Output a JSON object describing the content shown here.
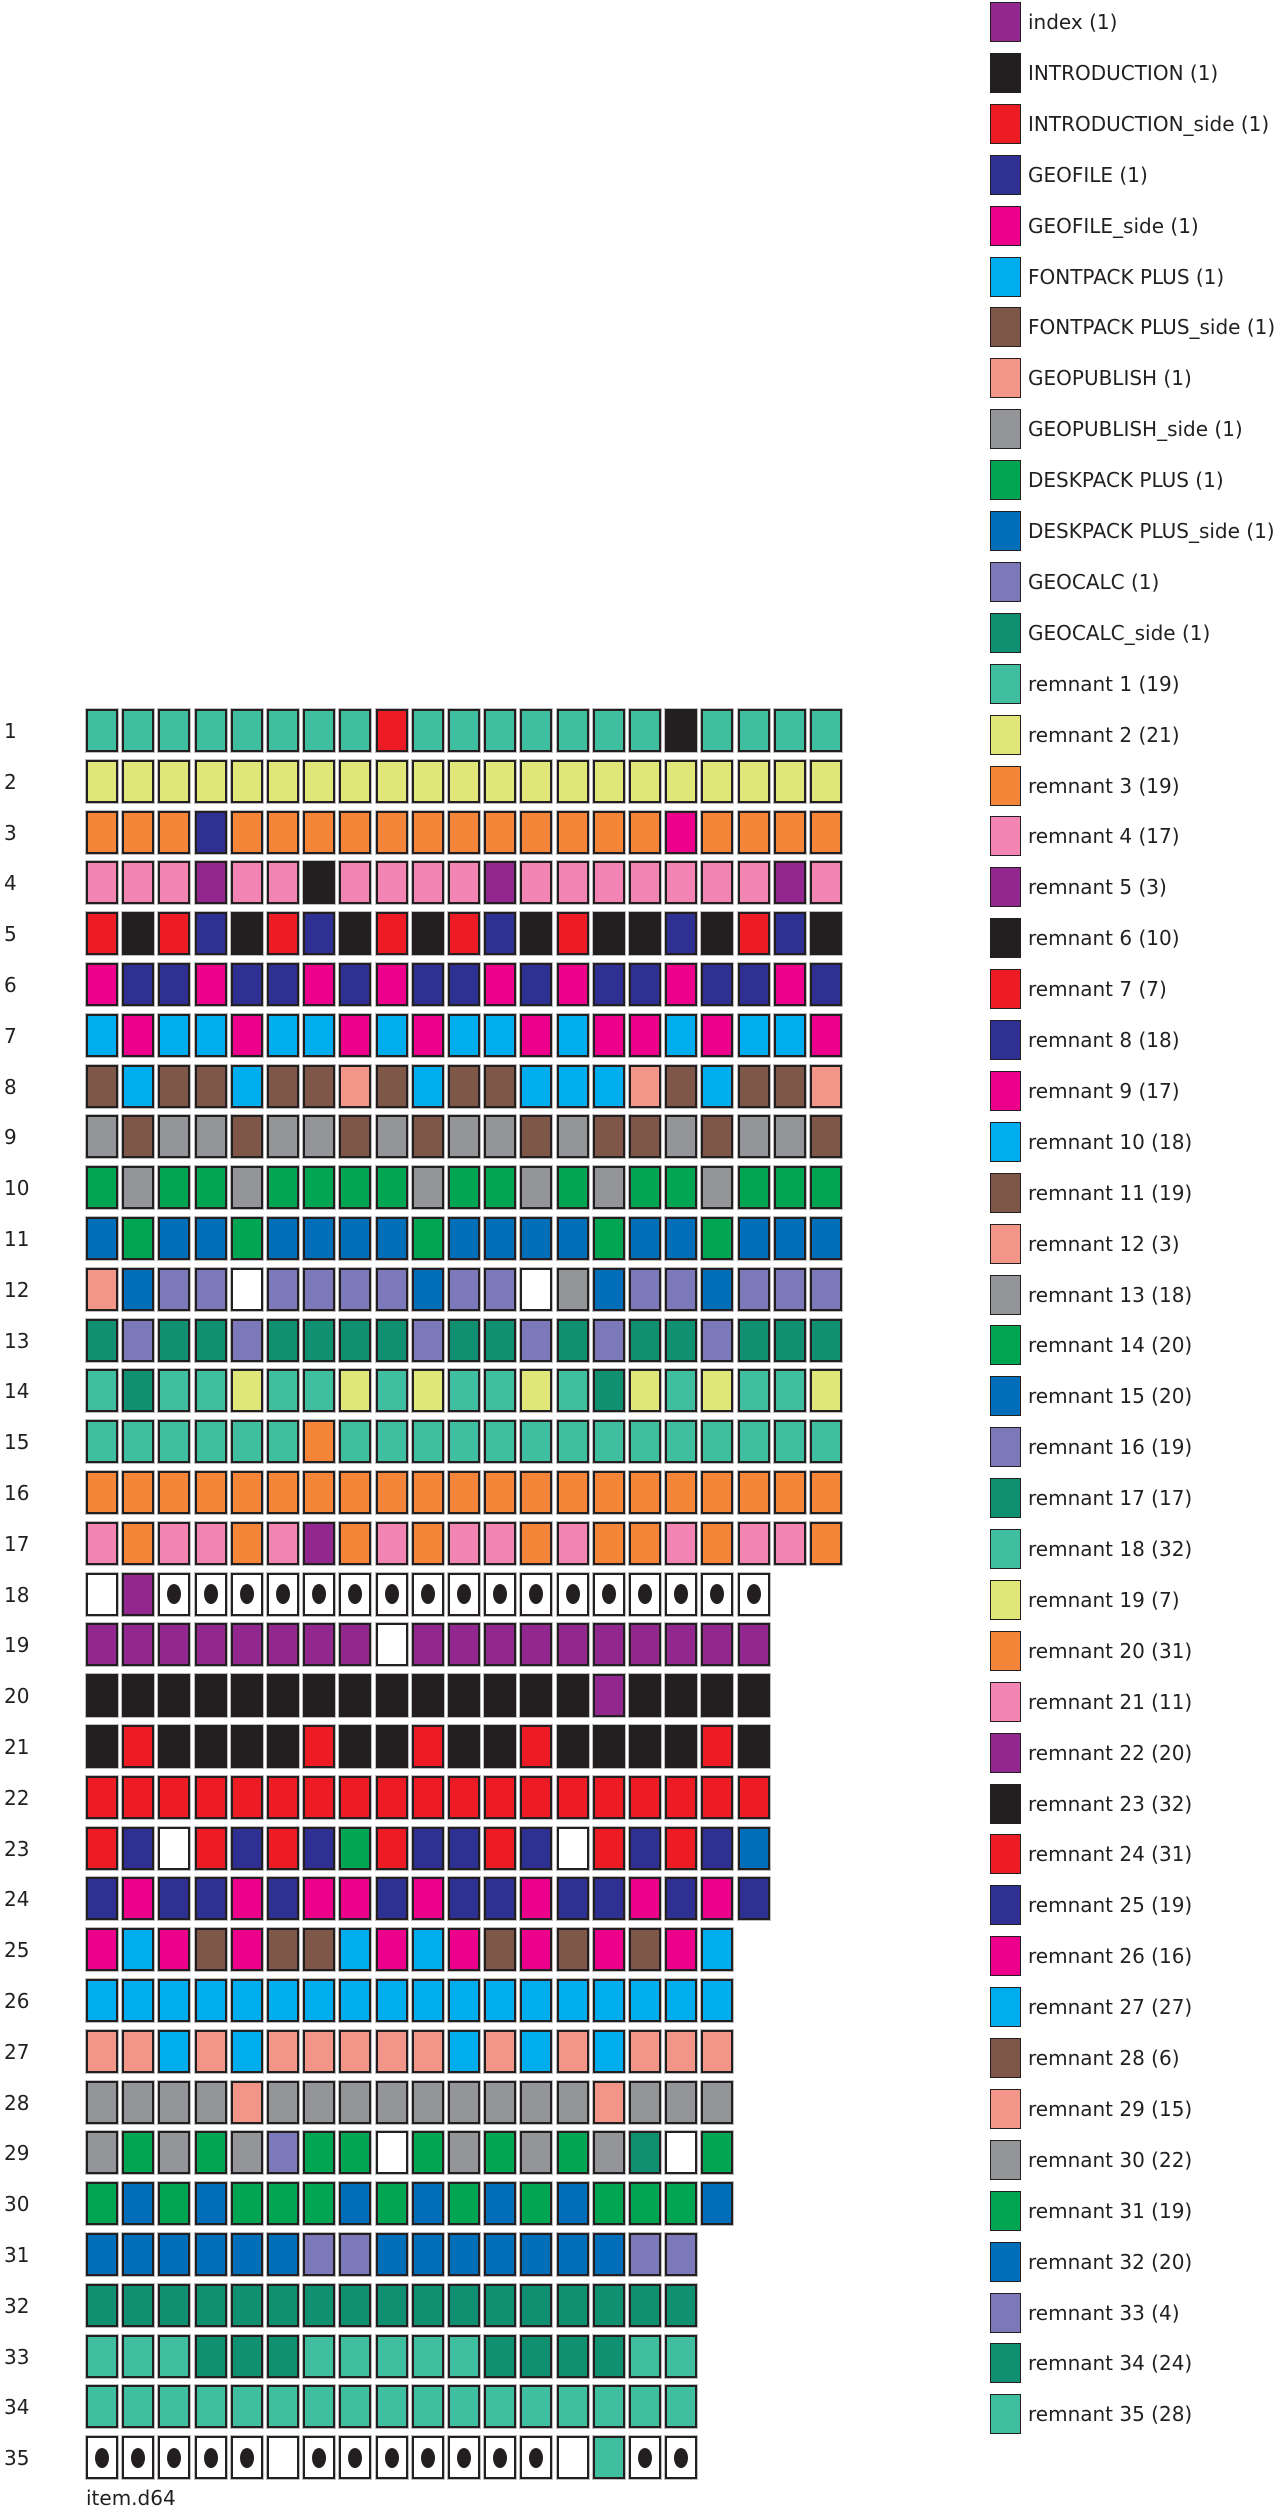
{
  "palette": {
    "T": "#3fbf9f",
    "Y": "#e0e678",
    "O": "#f58538",
    "P": "#f285b4",
    "U": "#92278f",
    "K": "#231f20",
    "R": "#ed1c24",
    "N": "#2e3192",
    "M": "#ec008c",
    "C": "#00aeef",
    "B": "#7f5749",
    "S": "#f4958a",
    "G": "#939598",
    "E": "#00a651",
    "L": "#006eb9",
    "V": "#7b79b9",
    "D": "#0f9070",
    "W": "#ffffff",
    "o": "#ffffff"
  },
  "legend": [
    {
      "label": "index (1)",
      "color": "U"
    },
    {
      "label": "INTRODUCTION (1)",
      "color": "K"
    },
    {
      "label": "INTRODUCTION_side (1)",
      "color": "R"
    },
    {
      "label": "GEOFILE (1)",
      "color": "N"
    },
    {
      "label": "GEOFILE_side (1)",
      "color": "M"
    },
    {
      "label": "FONTPACK PLUS (1)",
      "color": "C"
    },
    {
      "label": "FONTPACK PLUS_side (1)",
      "color": "B"
    },
    {
      "label": "GEOPUBLISH (1)",
      "color": "S"
    },
    {
      "label": "GEOPUBLISH_side (1)",
      "color": "G"
    },
    {
      "label": "DESKPACK PLUS (1)",
      "color": "E"
    },
    {
      "label": "DESKPACK PLUS_side (1)",
      "color": "L"
    },
    {
      "label": "GEOCALC (1)",
      "color": "V"
    },
    {
      "label": "GEOCALC_side (1)",
      "color": "D"
    },
    {
      "label": "remnant 1 (19)",
      "color": "T"
    },
    {
      "label": "remnant 2 (21)",
      "color": "Y"
    },
    {
      "label": "remnant 3 (19)",
      "color": "O"
    },
    {
      "label": "remnant 4 (17)",
      "color": "P"
    },
    {
      "label": "remnant 5 (3)",
      "color": "U"
    },
    {
      "label": "remnant 6 (10)",
      "color": "K"
    },
    {
      "label": "remnant 7 (7)",
      "color": "R"
    },
    {
      "label": "remnant 8 (18)",
      "color": "N"
    },
    {
      "label": "remnant 9 (17)",
      "color": "M"
    },
    {
      "label": "remnant 10 (18)",
      "color": "C"
    },
    {
      "label": "remnant 11 (19)",
      "color": "B"
    },
    {
      "label": "remnant 12 (3)",
      "color": "S"
    },
    {
      "label": "remnant 13 (18)",
      "color": "G"
    },
    {
      "label": "remnant 14 (20)",
      "color": "E"
    },
    {
      "label": "remnant 15 (20)",
      "color": "L"
    },
    {
      "label": "remnant 16 (19)",
      "color": "V"
    },
    {
      "label": "remnant 17 (17)",
      "color": "D"
    },
    {
      "label": "remnant 18 (32)",
      "color": "T"
    },
    {
      "label": "remnant 19 (7)",
      "color": "Y"
    },
    {
      "label": "remnant 20 (31)",
      "color": "O"
    },
    {
      "label": "remnant 21 (11)",
      "color": "P"
    },
    {
      "label": "remnant 22 (20)",
      "color": "U"
    },
    {
      "label": "remnant 23 (32)",
      "color": "K"
    },
    {
      "label": "remnant 24 (31)",
      "color": "R"
    },
    {
      "label": "remnant 25 (19)",
      "color": "N"
    },
    {
      "label": "remnant 26 (16)",
      "color": "M"
    },
    {
      "label": "remnant 27 (27)",
      "color": "C"
    },
    {
      "label": "remnant 28 (6)",
      "color": "B"
    },
    {
      "label": "remnant 29 (15)",
      "color": "S"
    },
    {
      "label": "remnant 30 (22)",
      "color": "G"
    },
    {
      "label": "remnant 31 (19)",
      "color": "E"
    },
    {
      "label": "remnant 32 (20)",
      "color": "L"
    },
    {
      "label": "remnant 33 (4)",
      "color": "V"
    },
    {
      "label": "remnant 34 (24)",
      "color": "D"
    },
    {
      "label": "remnant 35 (28)",
      "color": "T"
    }
  ],
  "rows": [
    {
      "label": "1",
      "cells": "TTTTTTTTRTTTTTTTKTTTT"
    },
    {
      "label": "2",
      "cells": "YYYYYYYYYYYYYYYYYYYYY"
    },
    {
      "label": "3",
      "cells": "OOONOOOOOOOOOOOOMOOOO"
    },
    {
      "label": "4",
      "cells": "PPPUPPKPPPPUPPPPPPPUP"
    },
    {
      "label": "5",
      "cells": "RKRNKRNKRKRNKRKKNKRNK"
    },
    {
      "label": "6",
      "cells": "MNNMNNMNMNNMNMNNMNNMN"
    },
    {
      "label": "7",
      "cells": "CMCCMCCMCMCCMCMMCMCCM"
    },
    {
      "label": "8",
      "cells": "BCBBCBBSBCBBCCCSBCBBS"
    },
    {
      "label": "9",
      "cells": "GBGGBGGBGBGGBGBBGBGGB"
    },
    {
      "label": "10",
      "cells": "EGEEGEEEEGEEGEGEEGEEE"
    },
    {
      "label": "11",
      "cells": "LELLELLLLELLLLELLELLL"
    },
    {
      "label": "12",
      "cells": "SLVVWVVVVLVVWGLVVLVVV"
    },
    {
      "label": "13",
      "cells": "DVDDVDDDDVDDVDVDDVDDD"
    },
    {
      "label": "14",
      "cells": "TDTTYTTYTYTTYTDYTYTTY"
    },
    {
      "label": "15",
      "cells": "TTTTTTOTTTTTTTTTTTTTT"
    },
    {
      "label": "16",
      "cells": "OOOOOOOOOOOOOOOOOOOOO"
    },
    {
      "label": "17",
      "cells": "POPPOPUOPOPPOPOOPOPPO"
    },
    {
      "label": "18",
      "cells": "WUooooooooooooooooo"
    },
    {
      "label": "19",
      "cells": "UUUUUUUUWUUUUUUUUUU"
    },
    {
      "label": "20",
      "cells": "KKKKKKKKKKKKKKUKKKK"
    },
    {
      "label": "21",
      "cells": "KRKKKKRKKRKKRKKKKRK"
    },
    {
      "label": "22",
      "cells": "RRRRRRRRRRRRRRRRRRR"
    },
    {
      "label": "23",
      "cells": "RNWRNRNERNNRNWRNRNL"
    },
    {
      "label": "24",
      "cells": "NMNNMNMMNMNNMNNMNMN"
    },
    {
      "label": "25",
      "cells": "MCMBMBBCMCMBMBMBMC"
    },
    {
      "label": "26",
      "cells": "CCCCCCCCCCCCCCCCCC"
    },
    {
      "label": "27",
      "cells": "SSCSCSSSSSCSCSCSSS"
    },
    {
      "label": "28",
      "cells": "GGGGSGGGGGGGGGSGGG"
    },
    {
      "label": "29",
      "cells": "GEGEGVEEWEGEGEGDWE"
    },
    {
      "label": "30",
      "cells": "ELELEEELELELELEEEL"
    },
    {
      "label": "31",
      "cells": "LLLLLLVVLLLLLLLVV"
    },
    {
      "label": "32",
      "cells": "DDDDDDDDDDDDDDDDD"
    },
    {
      "label": "33",
      "cells": "TTTDDDTTTTTDDDDTT"
    },
    {
      "label": "34",
      "cells": "TTTTTTTTTTTTTTTTT"
    },
    {
      "label": "35",
      "cells": "oooooWoooooooWToo"
    }
  ],
  "footer": "item.d64"
}
